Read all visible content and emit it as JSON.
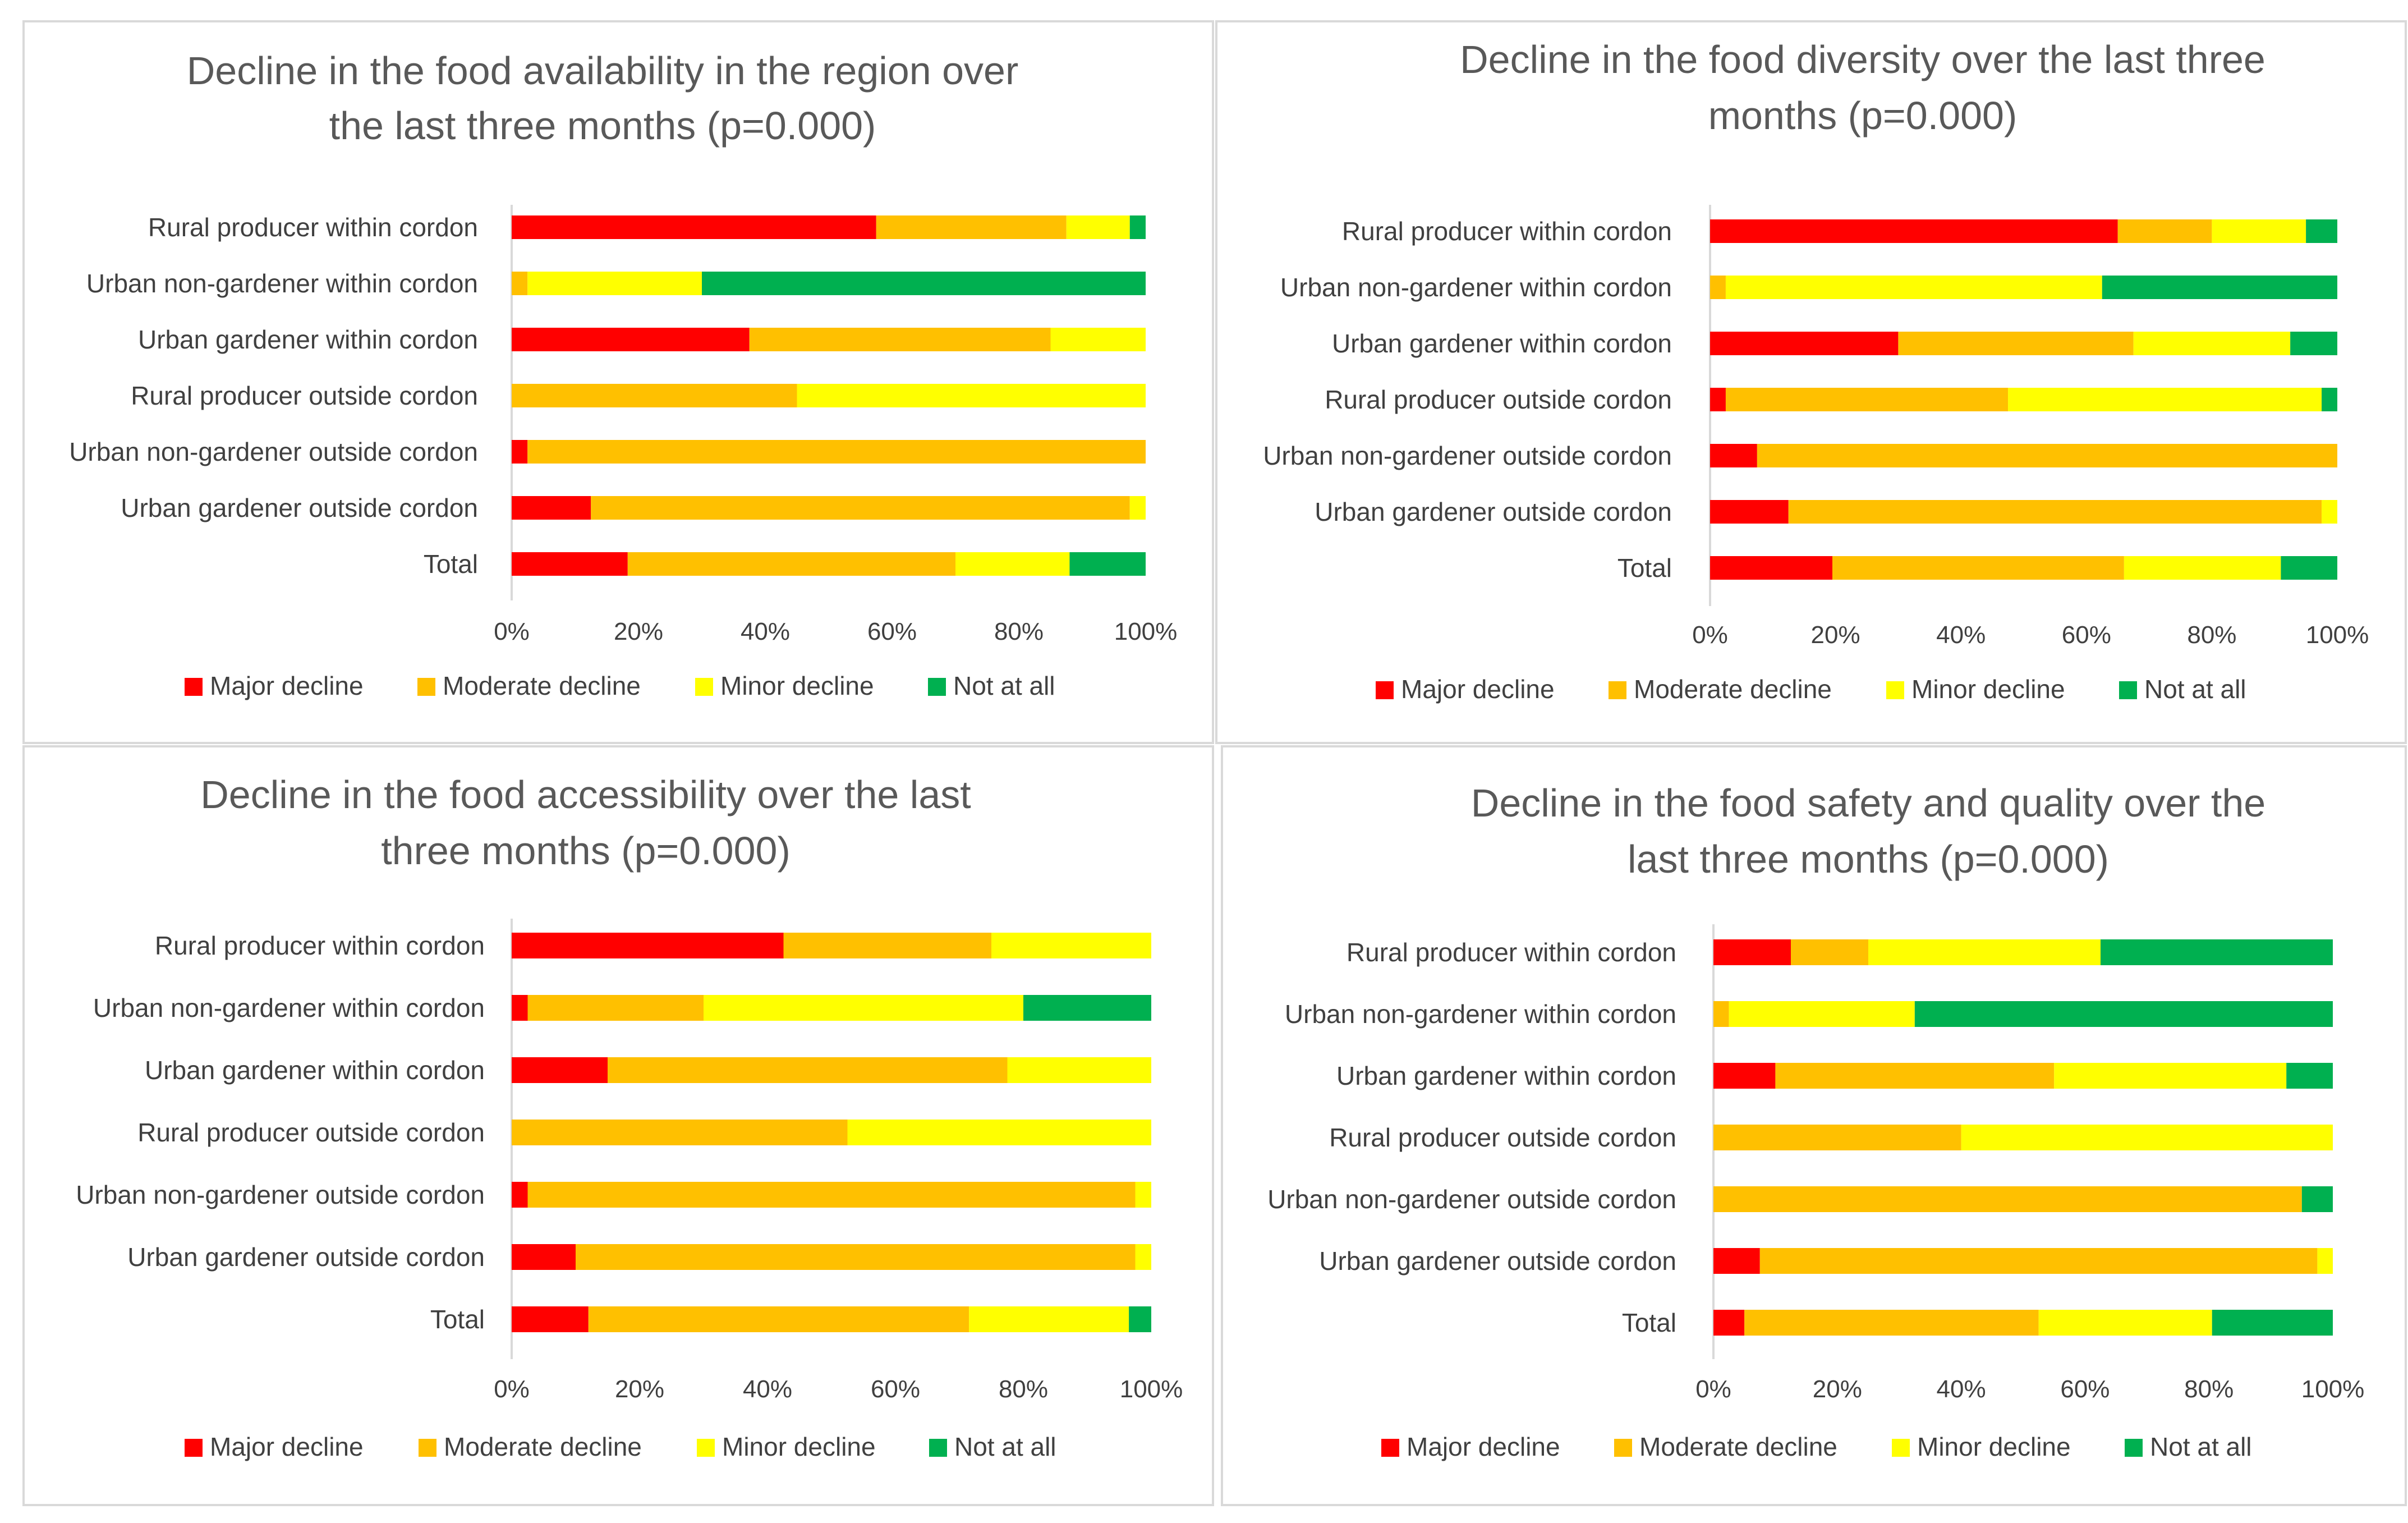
{
  "colors": {
    "major": "#ff0000",
    "moderate": "#ffc000",
    "minor": "#ffff00",
    "not": "#00b050"
  },
  "legend": [
    "Major decline",
    "Moderate decline",
    "Minor decline",
    "Not at all"
  ],
  "chart_data": [
    {
      "type": "bar",
      "stacked": true,
      "orientation": "horizontal",
      "title_lines": [
        "Decline in the food availability in the region over",
        "the last three months (p=0.000)"
      ],
      "categories": [
        "Rural producer within cordon",
        "Urban non-gardener within cordon",
        "Urban gardener within cordon",
        "Rural producer outside cordon",
        "Urban non-gardener outside cordon",
        "Urban gardener outside cordon",
        "Total"
      ],
      "series": [
        {
          "name": "Major decline",
          "values": [
            57.5,
            0,
            37.5,
            0,
            2.5,
            12.5,
            18.3
          ]
        },
        {
          "name": "Moderate decline",
          "values": [
            30,
            2.5,
            47.5,
            45,
            97.5,
            85,
            51.7
          ]
        },
        {
          "name": "Minor decline",
          "values": [
            10,
            27.5,
            15,
            55,
            0,
            2.5,
            18
          ]
        },
        {
          "name": "Not at all",
          "values": [
            2.5,
            70,
            0,
            0,
            0,
            0,
            12
          ]
        }
      ],
      "xticks": [
        "0%",
        "20%",
        "40%",
        "60%",
        "80%",
        "100%"
      ],
      "xlim": [
        0,
        100
      ]
    },
    {
      "type": "bar",
      "stacked": true,
      "orientation": "horizontal",
      "title_lines": [
        "Decline in the food diversity over the last three",
        "months (p=0.000)"
      ],
      "categories": [
        "Rural producer within cordon",
        "Urban non-gardener within cordon",
        "Urban gardener within cordon",
        "Rural producer outside cordon",
        "Urban non-gardener outside cordon",
        "Urban gardener outside cordon",
        "Total"
      ],
      "series": [
        {
          "name": "Major decline",
          "values": [
            65,
            0,
            30,
            2.5,
            7.5,
            12.5,
            19.5
          ]
        },
        {
          "name": "Moderate decline",
          "values": [
            15,
            2.5,
            37.5,
            45,
            92.5,
            85,
            46.5
          ]
        },
        {
          "name": "Minor decline",
          "values": [
            15,
            60,
            25,
            50,
            0,
            2.5,
            25
          ]
        },
        {
          "name": "Not at all",
          "values": [
            5,
            37.5,
            7.5,
            2.5,
            0,
            0,
            9
          ]
        }
      ],
      "xticks": [
        "0%",
        "20%",
        "40%",
        "60%",
        "80%",
        "100%"
      ],
      "xlim": [
        0,
        100
      ]
    },
    {
      "type": "bar",
      "stacked": true,
      "orientation": "horizontal",
      "title_lines": [
        "Decline in the food accessibility over the last",
        "three months (p=0.000)"
      ],
      "categories": [
        "Rural producer within cordon",
        "Urban non-gardener within cordon",
        "Urban gardener within cordon",
        "Rural producer outside cordon",
        "Urban non-gardener outside cordon",
        "Urban gardener outside cordon",
        "Total"
      ],
      "series": [
        {
          "name": "Major decline",
          "values": [
            42.5,
            2.5,
            15,
            0,
            2.5,
            10,
            12
          ]
        },
        {
          "name": "Moderate decline",
          "values": [
            32.5,
            27.5,
            62.5,
            52.5,
            95,
            87.5,
            59.5
          ]
        },
        {
          "name": "Minor decline",
          "values": [
            25,
            50,
            22.5,
            47.5,
            2.5,
            2.5,
            25
          ]
        },
        {
          "name": "Not at all",
          "values": [
            0,
            20,
            0,
            0,
            0,
            0,
            3.5
          ]
        }
      ],
      "xticks": [
        "0%",
        "20%",
        "40%",
        "60%",
        "80%",
        "100%"
      ],
      "xlim": [
        0,
        100
      ]
    },
    {
      "type": "bar",
      "stacked": true,
      "orientation": "horizontal",
      "title_lines": [
        "Decline in the food safety and quality over the",
        "last three months (p=0.000)"
      ],
      "categories": [
        "Rural producer within cordon",
        "Urban non-gardener within cordon",
        "Urban gardener within cordon",
        "Rural producer outside cordon",
        "Urban non-gardener outside cordon",
        "Urban gardener outside cordon",
        "Total"
      ],
      "series": [
        {
          "name": "Major decline",
          "values": [
            12.5,
            0,
            10,
            0,
            0,
            7.5,
            5
          ]
        },
        {
          "name": "Moderate decline",
          "values": [
            12.5,
            2.5,
            45,
            40,
            95,
            90,
            47.5
          ]
        },
        {
          "name": "Minor decline",
          "values": [
            37.5,
            30,
            37.5,
            60,
            0,
            2.5,
            28
          ]
        },
        {
          "name": "Not at all",
          "values": [
            37.5,
            67.5,
            7.5,
            0,
            5,
            0,
            19.5
          ]
        }
      ],
      "xticks": [
        "0%",
        "20%",
        "40%",
        "60%",
        "80%",
        "100%"
      ],
      "xlim": [
        0,
        100
      ]
    }
  ]
}
